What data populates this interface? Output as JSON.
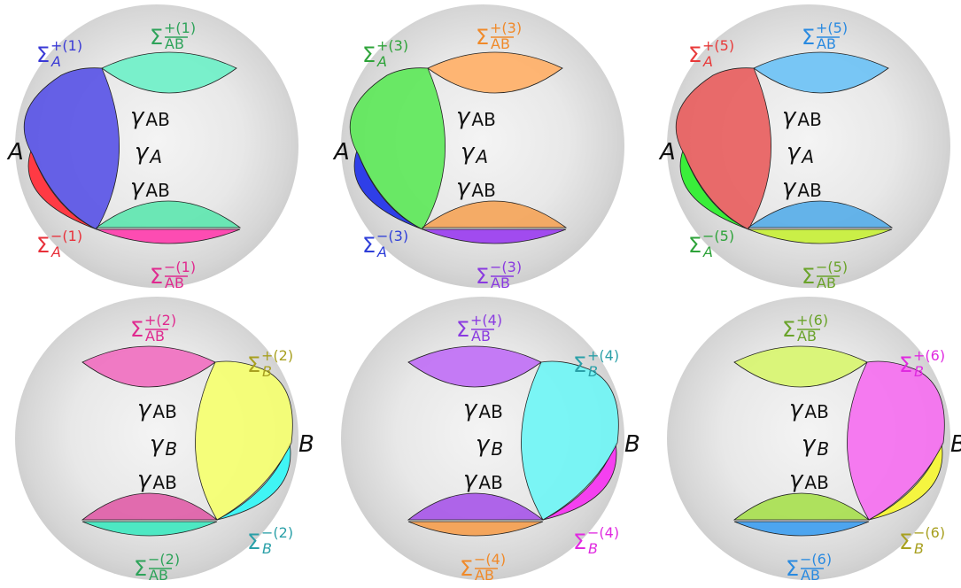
{
  "panels": [
    {
      "orient": "left",
      "region_label": "A",
      "curve_label": "γ",
      "curve_sub": "A",
      "mid_label": "γ",
      "mid_sub": "AB",
      "colors": {
        "top": "#6ff0c8",
        "bottom": "#5fe6b0",
        "bottom_sliver": "#ff3fae",
        "region_front": "#5a55e6",
        "region_back": "#ff3a44"
      },
      "sigma_top": {
        "letter": "Σ",
        "sup": "+(1)",
        "sub": "AB",
        "color": "#2ea35a"
      },
      "sigma_bottom": {
        "letter": "Σ",
        "sup": "−(1)",
        "sub": "AB",
        "color": "#e02a8f"
      },
      "sigma_region_top": {
        "letter": "Σ",
        "sup": "+(1)",
        "sub": "A",
        "color": "#3a3ad6"
      },
      "sigma_region_bottom": {
        "letter": "Σ",
        "sup": "−(1)",
        "sub": "A",
        "color": "#e8303a"
      }
    },
    {
      "orient": "left",
      "region_label": "A",
      "curve_label": "γ",
      "curve_sub": "A",
      "mid_label": "γ",
      "mid_sub": "AB",
      "colors": {
        "top": "#ffb068",
        "bottom": "#f4a55a",
        "bottom_sliver": "#9b3ef0",
        "region_front": "#5ee85a",
        "region_back": "#2f3fe8"
      },
      "sigma_top": {
        "letter": "Σ",
        "sup": "+(3)",
        "sub": "AB",
        "color": "#f08a2a"
      },
      "sigma_bottom": {
        "letter": "Σ",
        "sup": "−(3)",
        "sub": "AB",
        "color": "#8a3ae0"
      },
      "sigma_region_top": {
        "letter": "Σ",
        "sup": "+(3)",
        "sub": "A",
        "color": "#2ea33a"
      },
      "sigma_region_bottom": {
        "letter": "Σ",
        "sup": "−(3)",
        "sub": "A",
        "color": "#2f3fd8"
      }
    },
    {
      "orient": "left",
      "region_label": "A",
      "curve_label": "γ",
      "curve_sub": "A",
      "mid_label": "γ",
      "mid_sub": "AB",
      "colors": {
        "top": "#6ec2f5",
        "bottom": "#58aee8",
        "bottom_sliver": "#c8f03a",
        "region_front": "#e86060",
        "region_back": "#3aee3a"
      },
      "sigma_top": {
        "letter": "Σ",
        "sup": "+(5)",
        "sub": "AB",
        "color": "#2a8ae0"
      },
      "sigma_bottom": {
        "letter": "Σ",
        "sup": "−(5)",
        "sub": "AB",
        "color": "#6aa32a"
      },
      "sigma_region_top": {
        "letter": "Σ",
        "sup": "+(5)",
        "sub": "A",
        "color": "#e83a3a"
      },
      "sigma_region_bottom": {
        "letter": "Σ",
        "sup": "−(5)",
        "sub": "A",
        "color": "#2ea33a"
      }
    },
    {
      "orient": "right",
      "region_label": "B",
      "curve_label": "γ",
      "curve_sub": "B",
      "mid_label": "γ",
      "mid_sub": "AB",
      "colors": {
        "top": "#f070c0",
        "bottom": "#e060a8",
        "bottom_sliver": "#40e8c0",
        "region_front": "#f5ff70",
        "region_back": "#40f5f5"
      },
      "sigma_top": {
        "letter": "Σ",
        "sup": "+(2)",
        "sub": "AB",
        "color": "#e02a8f"
      },
      "sigma_bottom": {
        "letter": "Σ",
        "sup": "−(2)",
        "sub": "AB",
        "color": "#2ea35a"
      },
      "sigma_region_top": {
        "letter": "Σ",
        "sup": "+(2)",
        "sub": "B",
        "color": "#a8a020"
      },
      "sigma_region_bottom": {
        "letter": "Σ",
        "sup": "−(2)",
        "sub": "B",
        "color": "#2aa0a8"
      }
    },
    {
      "orient": "right",
      "region_label": "B",
      "curve_label": "γ",
      "curve_sub": "B",
      "mid_label": "γ",
      "mid_sub": "AB",
      "colors": {
        "top": "#c070f5",
        "bottom": "#a858e8",
        "bottom_sliver": "#f5a050",
        "region_front": "#70f5f5",
        "region_back": "#f540f0"
      },
      "sigma_top": {
        "letter": "Σ",
        "sup": "+(4)",
        "sub": "AB",
        "color": "#8a3ae0"
      },
      "sigma_bottom": {
        "letter": "Σ",
        "sup": "−(4)",
        "sub": "AB",
        "color": "#f08a2a"
      },
      "sigma_region_top": {
        "letter": "Σ",
        "sup": "+(4)",
        "sub": "B",
        "color": "#2aa0a8"
      },
      "sigma_region_bottom": {
        "letter": "Σ",
        "sup": "−(4)",
        "sub": "B",
        "color": "#e02ae0"
      }
    },
    {
      "orient": "right",
      "region_label": "B",
      "curve_label": "γ",
      "curve_sub": "B",
      "mid_label": "γ",
      "mid_sub": "AB",
      "colors": {
        "top": "#d8f570",
        "bottom": "#a8e050",
        "bottom_sliver": "#40a0f0",
        "region_front": "#f570f0",
        "region_back": "#f5f540"
      },
      "sigma_top": {
        "letter": "Σ",
        "sup": "+(6)",
        "sub": "AB",
        "color": "#6aa32a"
      },
      "sigma_bottom": {
        "letter": "Σ",
        "sup": "−(6)",
        "sub": "AB",
        "color": "#2a8ae0"
      },
      "sigma_region_top": {
        "letter": "Σ",
        "sup": "+(6)",
        "sub": "B",
        "color": "#e02ae0"
      },
      "sigma_region_bottom": {
        "letter": "Σ",
        "sup": "−(6)",
        "sub": "B",
        "color": "#a8a020"
      }
    }
  ]
}
